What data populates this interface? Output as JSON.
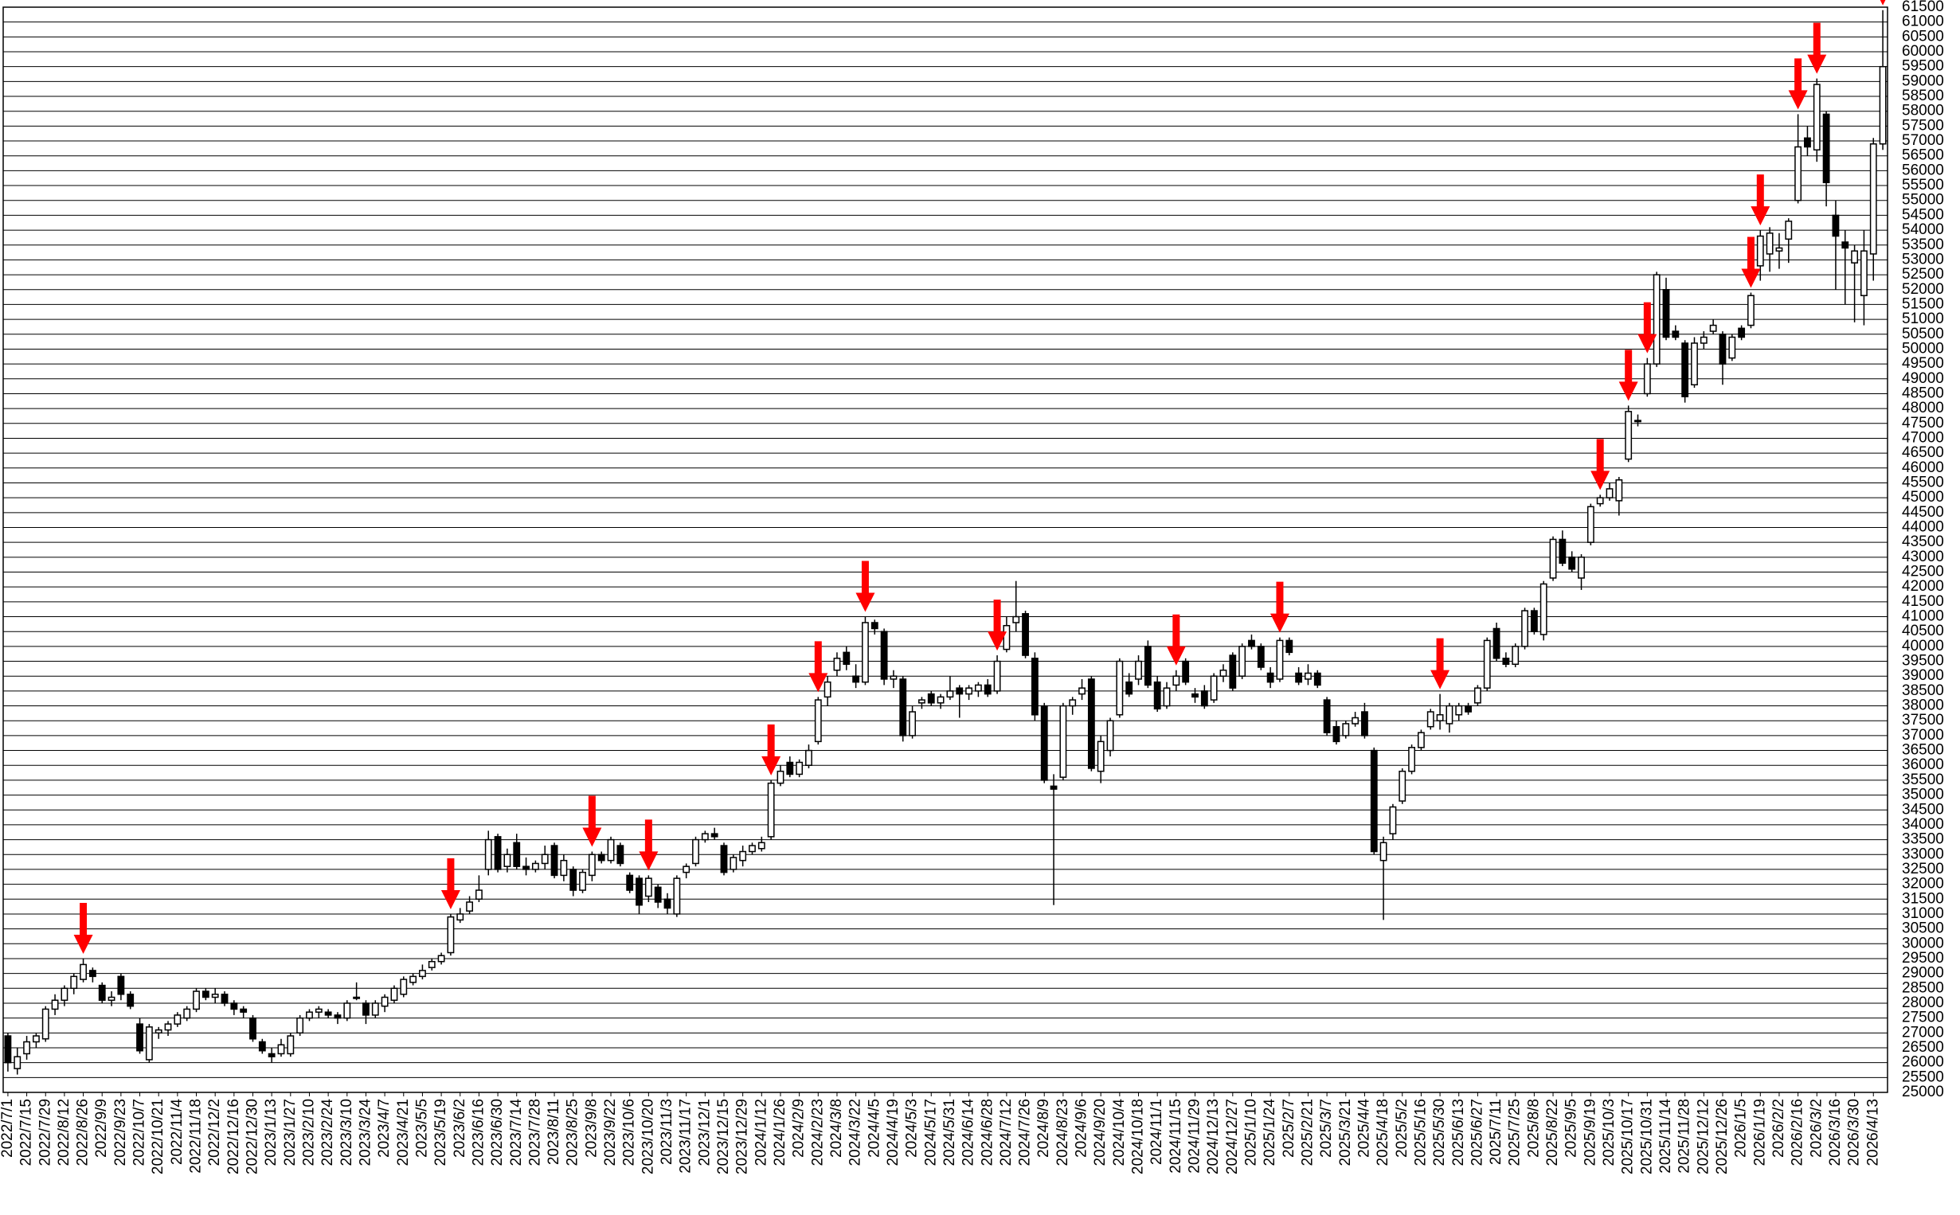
{
  "chart_data": {
    "type": "candlestick",
    "categories": [
      "2022/7/1",
      null,
      "2022/7/15",
      null,
      "2022/7/29",
      null,
      "2022/8/12",
      null,
      "2022/8/26",
      null,
      "2022/9/9",
      null,
      "2022/9/23",
      null,
      "2022/10/7",
      null,
      "2022/10/21",
      null,
      "2022/11/4",
      null,
      "2022/11/18",
      null,
      "2022/12/2",
      null,
      "2022/12/16",
      null,
      "2022/12/30",
      null,
      "2023/1/13",
      null,
      "2023/1/27",
      null,
      "2023/2/10",
      null,
      "2023/2/24",
      null,
      "2023/3/10",
      null,
      "2023/3/24",
      null,
      "2023/4/7",
      null,
      "2023/4/21",
      null,
      "2023/5/5",
      null,
      "2023/5/19",
      null,
      "2023/6/2",
      null,
      "2023/6/16",
      null,
      "2023/6/30",
      null,
      "2023/7/14",
      null,
      "2023/7/28",
      null,
      "2023/8/11",
      null,
      "2023/8/25",
      null,
      "2023/9/8",
      null,
      "2023/9/22",
      null,
      "2023/10/6",
      null,
      "2023/10/20",
      null,
      "2023/11/3",
      null,
      "2023/11/17",
      null,
      "2023/12/1",
      null,
      "2023/12/15",
      null,
      "2023/12/29",
      null,
      "2024/1/12",
      null,
      "2024/1/26",
      null,
      "2024/2/9",
      null,
      "2024/2/23",
      null,
      "2024/3/8",
      null,
      "2024/3/22",
      null,
      "2024/4/5",
      null,
      "2024/4/19",
      null,
      "2024/5/3",
      null,
      "2024/5/17",
      null,
      "2024/5/31",
      null,
      "2024/6/14",
      null,
      "2024/6/28",
      null,
      "2024/7/12",
      null,
      "2024/7/26",
      null,
      "2024/8/9",
      null,
      "2024/8/23",
      null,
      "2024/9/6",
      null,
      "2024/9/20",
      null,
      "2024/10/4",
      null,
      "2024/10/18",
      null,
      "2024/11/1",
      null,
      "2024/11/15",
      null,
      "2024/11/29",
      null,
      "2024/12/13",
      null,
      "2024/12/27",
      null,
      "2025/1/10",
      null,
      "2025/1/24",
      null,
      "2025/2/7",
      null,
      "2025/2/21",
      null,
      "2025/3/7",
      null,
      "2025/3/21",
      null,
      "2025/4/4",
      null,
      "2025/4/18",
      null,
      "2025/5/2",
      null,
      "2025/5/16",
      null,
      "2025/5/30",
      null,
      "2025/6/13",
      null,
      "2025/6/27",
      null,
      "2025/7/11",
      null,
      "2025/7/25",
      null,
      "2025/8/8",
      null,
      "2025/8/22",
      null,
      "2025/9/5",
      null,
      "2025/9/19",
      null,
      "2025/10/3",
      null,
      "2025/10/17",
      null,
      "2025/10/31",
      null,
      "2025/11/14",
      null,
      "2025/11/28",
      null,
      "2025/12/12",
      null,
      "2025/12/26",
      null,
      "2026/1/5",
      null,
      "2026/1/19",
      null,
      "2026/2/2",
      null,
      "2026/2/16",
      null,
      "2026/3/2",
      null,
      "2026/3/16",
      null,
      "2026/3/30",
      null,
      "2026/4/13",
      null
    ],
    "ohlc": [
      [
        26900,
        27000,
        25700,
        26000
      ],
      [
        25800,
        26500,
        25600,
        26200
      ],
      [
        26300,
        26900,
        26100,
        26700
      ],
      [
        26700,
        27000,
        26500,
        26900
      ],
      [
        26800,
        27900,
        26700,
        27800
      ],
      [
        27800,
        28300,
        27600,
        28100
      ],
      [
        28100,
        28600,
        27900,
        28500
      ],
      [
        28500,
        29000,
        28300,
        28900
      ],
      [
        28800,
        29500,
        28700,
        29300
      ],
      [
        29100,
        29200,
        28700,
        28900
      ],
      [
        28600,
        28700,
        28000,
        28100
      ],
      [
        28100,
        28400,
        27900,
        28200
      ],
      [
        28900,
        29000,
        28100,
        28300
      ],
      [
        28300,
        28400,
        27800,
        27900
      ],
      [
        27300,
        27500,
        26300,
        26400
      ],
      [
        26100,
        27300,
        26000,
        27200
      ],
      [
        27000,
        27200,
        26800,
        27100
      ],
      [
        27100,
        27400,
        26900,
        27300
      ],
      [
        27300,
        27700,
        27200,
        27600
      ],
      [
        27500,
        27900,
        27400,
        27800
      ],
      [
        27800,
        28500,
        27700,
        28400
      ],
      [
        28400,
        28500,
        28100,
        28200
      ],
      [
        28200,
        28500,
        28000,
        28300
      ],
      [
        28300,
        28400,
        27900,
        28000
      ],
      [
        28000,
        28100,
        27600,
        27800
      ],
      [
        27800,
        27900,
        27500,
        27700
      ],
      [
        27500,
        27600,
        26700,
        26800
      ],
      [
        26700,
        26800,
        26300,
        26400
      ],
      [
        26300,
        26500,
        26000,
        26200
      ],
      [
        26300,
        26800,
        26200,
        26600
      ],
      [
        26300,
        27000,
        26200,
        26900
      ],
      [
        27000,
        27600,
        26900,
        27500
      ],
      [
        27500,
        27800,
        27400,
        27700
      ],
      [
        27700,
        27900,
        27500,
        27800
      ],
      [
        27700,
        27800,
        27500,
        27600
      ],
      [
        27600,
        27700,
        27300,
        27500
      ],
      [
        27500,
        28100,
        27400,
        28000
      ],
      [
        28200,
        28700,
        28100,
        28200
      ],
      [
        28000,
        28100,
        27300,
        27600
      ],
      [
        27600,
        28100,
        27500,
        28000
      ],
      [
        27900,
        28300,
        27700,
        28200
      ],
      [
        28100,
        28600,
        28000,
        28500
      ],
      [
        28300,
        28900,
        28200,
        28800
      ],
      [
        28700,
        29000,
        28600,
        28900
      ],
      [
        28900,
        29300,
        28800,
        29100
      ],
      [
        29200,
        29500,
        29100,
        29400
      ],
      [
        29400,
        29700,
        29300,
        29600
      ],
      [
        29700,
        31000,
        29600,
        30900
      ],
      [
        30800,
        31200,
        30700,
        31000
      ],
      [
        31100,
        31600,
        31000,
        31400
      ],
      [
        31500,
        32300,
        31400,
        31800
      ],
      [
        32500,
        33800,
        32300,
        33500
      ],
      [
        33600,
        33700,
        32400,
        32500
      ],
      [
        32600,
        33200,
        32400,
        33000
      ],
      [
        33400,
        33700,
        32500,
        32600
      ],
      [
        32600,
        32900,
        32300,
        32500
      ],
      [
        32500,
        32800,
        32400,
        32700
      ],
      [
        32700,
        33300,
        32500,
        33000
      ],
      [
        33300,
        33400,
        32200,
        32300
      ],
      [
        32300,
        33000,
        32100,
        32800
      ],
      [
        32500,
        32600,
        31600,
        31800
      ],
      [
        31800,
        32500,
        31700,
        32400
      ],
      [
        32300,
        33100,
        32100,
        33000
      ],
      [
        33000,
        33100,
        32700,
        32800
      ],
      [
        32800,
        33600,
        32700,
        33500
      ],
      [
        33300,
        33400,
        32600,
        32700
      ],
      [
        32300,
        32400,
        31700,
        31800
      ],
      [
        32200,
        32300,
        31000,
        31300
      ],
      [
        31600,
        32300,
        31400,
        32200
      ],
      [
        31900,
        32000,
        31200,
        31400
      ],
      [
        31500,
        31700,
        31000,
        31200
      ],
      [
        31000,
        32300,
        30900,
        32200
      ],
      [
        32400,
        32700,
        32200,
        32600
      ],
      [
        32700,
        33600,
        32600,
        33500
      ],
      [
        33500,
        33800,
        33400,
        33700
      ],
      [
        33700,
        33900,
        33500,
        33600
      ],
      [
        33300,
        33400,
        32300,
        32400
      ],
      [
        32500,
        33000,
        32400,
        32900
      ],
      [
        32800,
        33300,
        32600,
        33100
      ],
      [
        33100,
        33400,
        33000,
        33300
      ],
      [
        33200,
        33600,
        33100,
        33400
      ],
      [
        33600,
        35500,
        33500,
        35400
      ],
      [
        35400,
        36000,
        35300,
        35800
      ],
      [
        36100,
        36300,
        35600,
        35700
      ],
      [
        35700,
        36200,
        35600,
        36100
      ],
      [
        36000,
        36700,
        35900,
        36500
      ],
      [
        36800,
        38300,
        36700,
        38200
      ],
      [
        38300,
        39000,
        38000,
        38800
      ],
      [
        39200,
        39800,
        39000,
        39600
      ],
      [
        39800,
        40000,
        39200,
        39400
      ],
      [
        39000,
        39400,
        38600,
        38800
      ],
      [
        38800,
        41000,
        38700,
        40800
      ],
      [
        40800,
        40900,
        40400,
        40600
      ],
      [
        40500,
        40600,
        38700,
        38900
      ],
      [
        38900,
        39200,
        38600,
        39000
      ],
      [
        38900,
        39000,
        36800,
        37000
      ],
      [
        37000,
        38000,
        36900,
        37800
      ],
      [
        38100,
        38300,
        37900,
        38200
      ],
      [
        38400,
        38500,
        38000,
        38100
      ],
      [
        38100,
        38400,
        37900,
        38300
      ],
      [
        38300,
        39000,
        38200,
        38500
      ],
      [
        38600,
        38700,
        37600,
        38400
      ],
      [
        38400,
        38700,
        38200,
        38600
      ],
      [
        38500,
        38800,
        38300,
        38700
      ],
      [
        38700,
        38900,
        38300,
        38400
      ],
      [
        38500,
        39700,
        38400,
        39500
      ],
      [
        39900,
        41000,
        39800,
        40700
      ],
      [
        40800,
        42200,
        40500,
        41000
      ],
      [
        41100,
        41200,
        39600,
        39700
      ],
      [
        39600,
        39800,
        37500,
        37700
      ],
      [
        38000,
        38100,
        35400,
        35500
      ],
      [
        35300,
        35700,
        31300,
        35200
      ],
      [
        35600,
        38100,
        35500,
        38000
      ],
      [
        38000,
        38300,
        37700,
        38200
      ],
      [
        38400,
        38900,
        38200,
        38600
      ],
      [
        38900,
        39000,
        35800,
        35900
      ],
      [
        35800,
        37000,
        35400,
        36800
      ],
      [
        36500,
        37600,
        36300,
        37500
      ],
      [
        37700,
        39600,
        37600,
        39500
      ],
      [
        38800,
        39100,
        38300,
        38400
      ],
      [
        38900,
        39700,
        38700,
        39500
      ],
      [
        40000,
        40200,
        38600,
        38700
      ],
      [
        38800,
        39000,
        37800,
        37900
      ],
      [
        38000,
        38800,
        37900,
        38600
      ],
      [
        38700,
        39200,
        38500,
        39000
      ],
      [
        39500,
        39600,
        38700,
        38800
      ],
      [
        38400,
        38600,
        38100,
        38300
      ],
      [
        38500,
        38700,
        37900,
        38000
      ],
      [
        38200,
        39100,
        38100,
        39000
      ],
      [
        39000,
        39400,
        38800,
        39200
      ],
      [
        39700,
        39800,
        38500,
        38600
      ],
      [
        39000,
        40100,
        38900,
        40000
      ],
      [
        40200,
        40400,
        39900,
        40000
      ],
      [
        40000,
        40100,
        39200,
        39300
      ],
      [
        39100,
        39300,
        38600,
        38800
      ],
      [
        38900,
        40300,
        38800,
        40200
      ],
      [
        40200,
        40300,
        39700,
        39800
      ],
      [
        39100,
        39300,
        38700,
        38800
      ],
      [
        38900,
        39400,
        38700,
        39100
      ],
      [
        39100,
        39200,
        38600,
        38700
      ],
      [
        38200,
        38300,
        37000,
        37100
      ],
      [
        37300,
        37500,
        36700,
        36800
      ],
      [
        37000,
        37500,
        36900,
        37400
      ],
      [
        37400,
        37800,
        37300,
        37600
      ],
      [
        37800,
        38100,
        36900,
        37000
      ],
      [
        36500,
        36600,
        33000,
        33100
      ],
      [
        32800,
        33600,
        30800,
        33400
      ],
      [
        33700,
        34700,
        33500,
        34600
      ],
      [
        34800,
        35900,
        34700,
        35800
      ],
      [
        35800,
        36700,
        35700,
        36600
      ],
      [
        36600,
        37200,
        36500,
        37100
      ],
      [
        37300,
        37900,
        37200,
        37800
      ],
      [
        37500,
        38400,
        37200,
        37700
      ],
      [
        37400,
        38100,
        37100,
        38000
      ],
      [
        37700,
        38100,
        37500,
        38000
      ],
      [
        38000,
        38100,
        37700,
        37800
      ],
      [
        38100,
        38700,
        38000,
        38600
      ],
      [
        38600,
        40300,
        38500,
        40200
      ],
      [
        40600,
        40800,
        39500,
        39600
      ],
      [
        39600,
        39800,
        39300,
        39400
      ],
      [
        39400,
        40100,
        39300,
        40000
      ],
      [
        40000,
        41300,
        39900,
        41200
      ],
      [
        41200,
        41300,
        40400,
        40500
      ],
      [
        40400,
        42200,
        40200,
        42100
      ],
      [
        42300,
        43700,
        42200,
        43600
      ],
      [
        43600,
        43900,
        42700,
        42800
      ],
      [
        43000,
        43200,
        42500,
        42600
      ],
      [
        42300,
        43100,
        41900,
        43000
      ],
      [
        43500,
        44800,
        43400,
        44700
      ],
      [
        44800,
        45100,
        44700,
        45000
      ],
      [
        45000,
        45500,
        44900,
        45300
      ],
      [
        44900,
        45700,
        44400,
        45600
      ],
      [
        46300,
        48100,
        46200,
        47900
      ],
      [
        47600,
        47800,
        47400,
        47600
      ],
      [
        48500,
        49700,
        48400,
        49500
      ],
      [
        49500,
        52600,
        49400,
        52500
      ],
      [
        52000,
        52400,
        50300,
        50400
      ],
      [
        50600,
        50800,
        50300,
        50400
      ],
      [
        50200,
        50300,
        48200,
        48400
      ],
      [
        48800,
        50400,
        48700,
        50200
      ],
      [
        50200,
        50600,
        50000,
        50400
      ],
      [
        50600,
        51000,
        50500,
        50800
      ],
      [
        50500,
        50600,
        48800,
        49500
      ],
      [
        49700,
        50500,
        49600,
        50400
      ],
      [
        50700,
        50800,
        50300,
        50400
      ],
      [
        50800,
        51900,
        50700,
        51800
      ],
      [
        52800,
        54000,
        52300,
        53800
      ],
      [
        53200,
        54100,
        52600,
        53900
      ],
      [
        53300,
        53900,
        52700,
        53400
      ],
      [
        53700,
        54400,
        52900,
        54300
      ],
      [
        55000,
        57900,
        54900,
        56800
      ],
      [
        57100,
        57500,
        56500,
        56800
      ],
      [
        56700,
        59100,
        56300,
        58900
      ],
      [
        57900,
        58000,
        54800,
        55600
      ],
      [
        54500,
        55000,
        52000,
        53800
      ],
      [
        53600,
        54000,
        51500,
        53400
      ],
      [
        52900,
        53500,
        50900,
        53300
      ],
      [
        51800,
        54000,
        50800,
        53300
      ],
      [
        53200,
        57100,
        52300,
        56900
      ],
      [
        56900,
        61400,
        56700,
        59500
      ]
    ],
    "signals": [
      8,
      47,
      62,
      68,
      81,
      86,
      91,
      105,
      124,
      135,
      152,
      169,
      172,
      174,
      185,
      186,
      190,
      192,
      199
    ],
    "signal_color": "#ff0000",
    "up_color": "#ffffff",
    "down_color": "#000000",
    "ylim": [
      25000,
      61500
    ],
    "yticks": [
      25000,
      25500,
      26000,
      26500,
      27000,
      27500,
      28000,
      28500,
      29000,
      29500,
      30000,
      30500,
      31000,
      31500,
      32000,
      32500,
      33000,
      33500,
      34000,
      34500,
      35000,
      35500,
      36000,
      36500,
      37000,
      37500,
      38000,
      38500,
      39000,
      39500,
      40000,
      40500,
      41000,
      41500,
      42000,
      42500,
      43000,
      43500,
      44000,
      44500,
      45000,
      45500,
      46000,
      46500,
      47000,
      47500,
      48000,
      48500,
      49000,
      49500,
      50000,
      50500,
      51000,
      51500,
      52000,
      52500,
      53000,
      53500,
      54000,
      54500,
      55000,
      55500,
      56000,
      56500,
      57000,
      57500,
      58000,
      58500,
      59000,
      59500,
      60000,
      60500,
      61000,
      61500
    ],
    "grid": true
  }
}
